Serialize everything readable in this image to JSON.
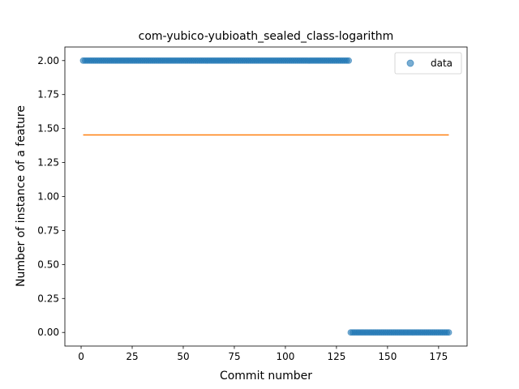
{
  "chart_data": {
    "type": "scatter",
    "title": "com-yubico-yubioath_sealed_class-logarithm",
    "xlabel": "Commit number",
    "ylabel": "Number of instance of a feature",
    "xlim": [
      -7.95,
      188.95
    ],
    "ylim": [
      -0.1,
      2.1
    ],
    "x_ticks": [
      0,
      25,
      50,
      75,
      100,
      125,
      150,
      175
    ],
    "y_ticks": [
      0.0,
      0.25,
      0.5,
      0.75,
      1.0,
      1.25,
      1.5,
      1.75,
      2.0
    ],
    "y_tick_labels": [
      "0.00",
      "0.25",
      "0.50",
      "0.75",
      "1.00",
      "1.25",
      "1.50",
      "1.75",
      "2.00"
    ],
    "legend_position": "top-right",
    "grid": false,
    "series": [
      {
        "name": "data",
        "kind": "scatter",
        "color": "#1f77b4",
        "segments": [
          {
            "x_start": 1,
            "x_end": 131,
            "y": 2
          },
          {
            "x_start": 132,
            "x_end": 180,
            "y": 0
          }
        ]
      },
      {
        "kind": "line",
        "color": "#ff7f0e",
        "x": [
          1,
          180
        ],
        "y": [
          1.453,
          1.453
        ]
      }
    ]
  }
}
